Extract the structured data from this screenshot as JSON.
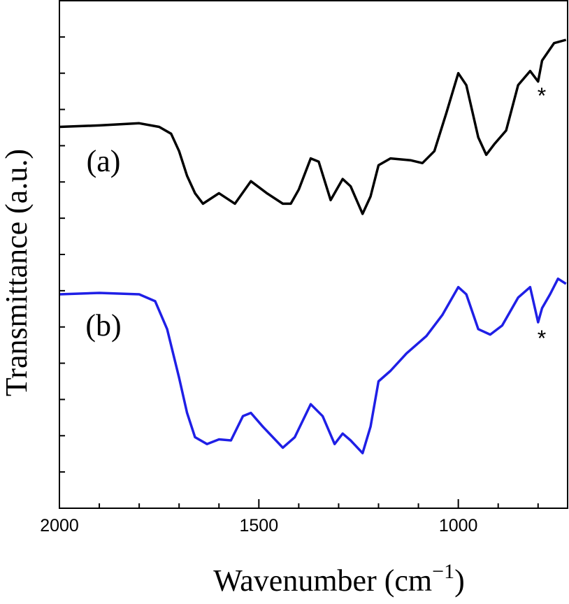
{
  "chart_data": {
    "type": "line",
    "xlabel_parts": [
      "Wavenumber (cm",
      "−1",
      ")"
    ],
    "ylabel": "Transmittance (a.u.)",
    "xlim": [
      2000,
      726
    ],
    "ylim": [
      0,
      14
    ],
    "xticks": [
      2000,
      1500,
      1000
    ],
    "xminorticks": [
      1900,
      1800,
      1700,
      1600,
      1400,
      1300,
      1200,
      1100,
      900,
      800
    ],
    "yticks": [
      1,
      2,
      3,
      4,
      5,
      6,
      7,
      8,
      9,
      10,
      11,
      12,
      13
    ],
    "annotations": [
      "(a)",
      "(b)",
      "*",
      "*"
    ],
    "series": [
      {
        "color": "#000000",
        "x": [
          2000,
          1900,
          1800,
          1750,
          1720,
          1700,
          1680,
          1660,
          1640,
          1600,
          1560,
          1520,
          1480,
          1440,
          1420,
          1400,
          1370,
          1350,
          1320,
          1290,
          1270,
          1240,
          1220,
          1200,
          1170,
          1120,
          1090,
          1060,
          1030,
          1000,
          980,
          950,
          930,
          910,
          880,
          850,
          820,
          800,
          790,
          760,
          730
        ],
        "values": [
          10.52,
          10.56,
          10.62,
          10.52,
          10.33,
          9.85,
          9.17,
          8.69,
          8.4,
          8.69,
          8.4,
          9.02,
          8.69,
          8.4,
          8.4,
          8.79,
          9.65,
          9.56,
          8.5,
          9.08,
          8.88,
          8.12,
          8.6,
          9.46,
          9.65,
          9.6,
          9.52,
          9.85,
          10.9,
          12.0,
          11.67,
          10.23,
          9.75,
          10.04,
          10.42,
          11.67,
          12.06,
          11.77,
          12.35,
          12.83,
          12.92
        ]
      },
      {
        "color": "#1f1fe6",
        "x": [
          2000,
          1900,
          1800,
          1760,
          1730,
          1700,
          1680,
          1660,
          1630,
          1600,
          1570,
          1540,
          1520,
          1490,
          1440,
          1410,
          1370,
          1340,
          1310,
          1290,
          1270,
          1240,
          1220,
          1200,
          1170,
          1130,
          1080,
          1040,
          1000,
          980,
          950,
          920,
          890,
          850,
          820,
          800,
          790,
          770,
          750,
          730
        ],
        "values": [
          5.9,
          5.94,
          5.9,
          5.71,
          4.94,
          3.6,
          2.63,
          1.96,
          1.77,
          1.9,
          1.87,
          2.54,
          2.63,
          2.25,
          1.67,
          1.96,
          2.87,
          2.54,
          1.77,
          2.06,
          1.87,
          1.52,
          2.25,
          3.5,
          3.79,
          4.27,
          4.75,
          5.33,
          6.1,
          5.9,
          4.94,
          4.79,
          5.04,
          5.81,
          6.1,
          5.13,
          5.52,
          5.9,
          6.33,
          6.19
        ]
      }
    ]
  }
}
